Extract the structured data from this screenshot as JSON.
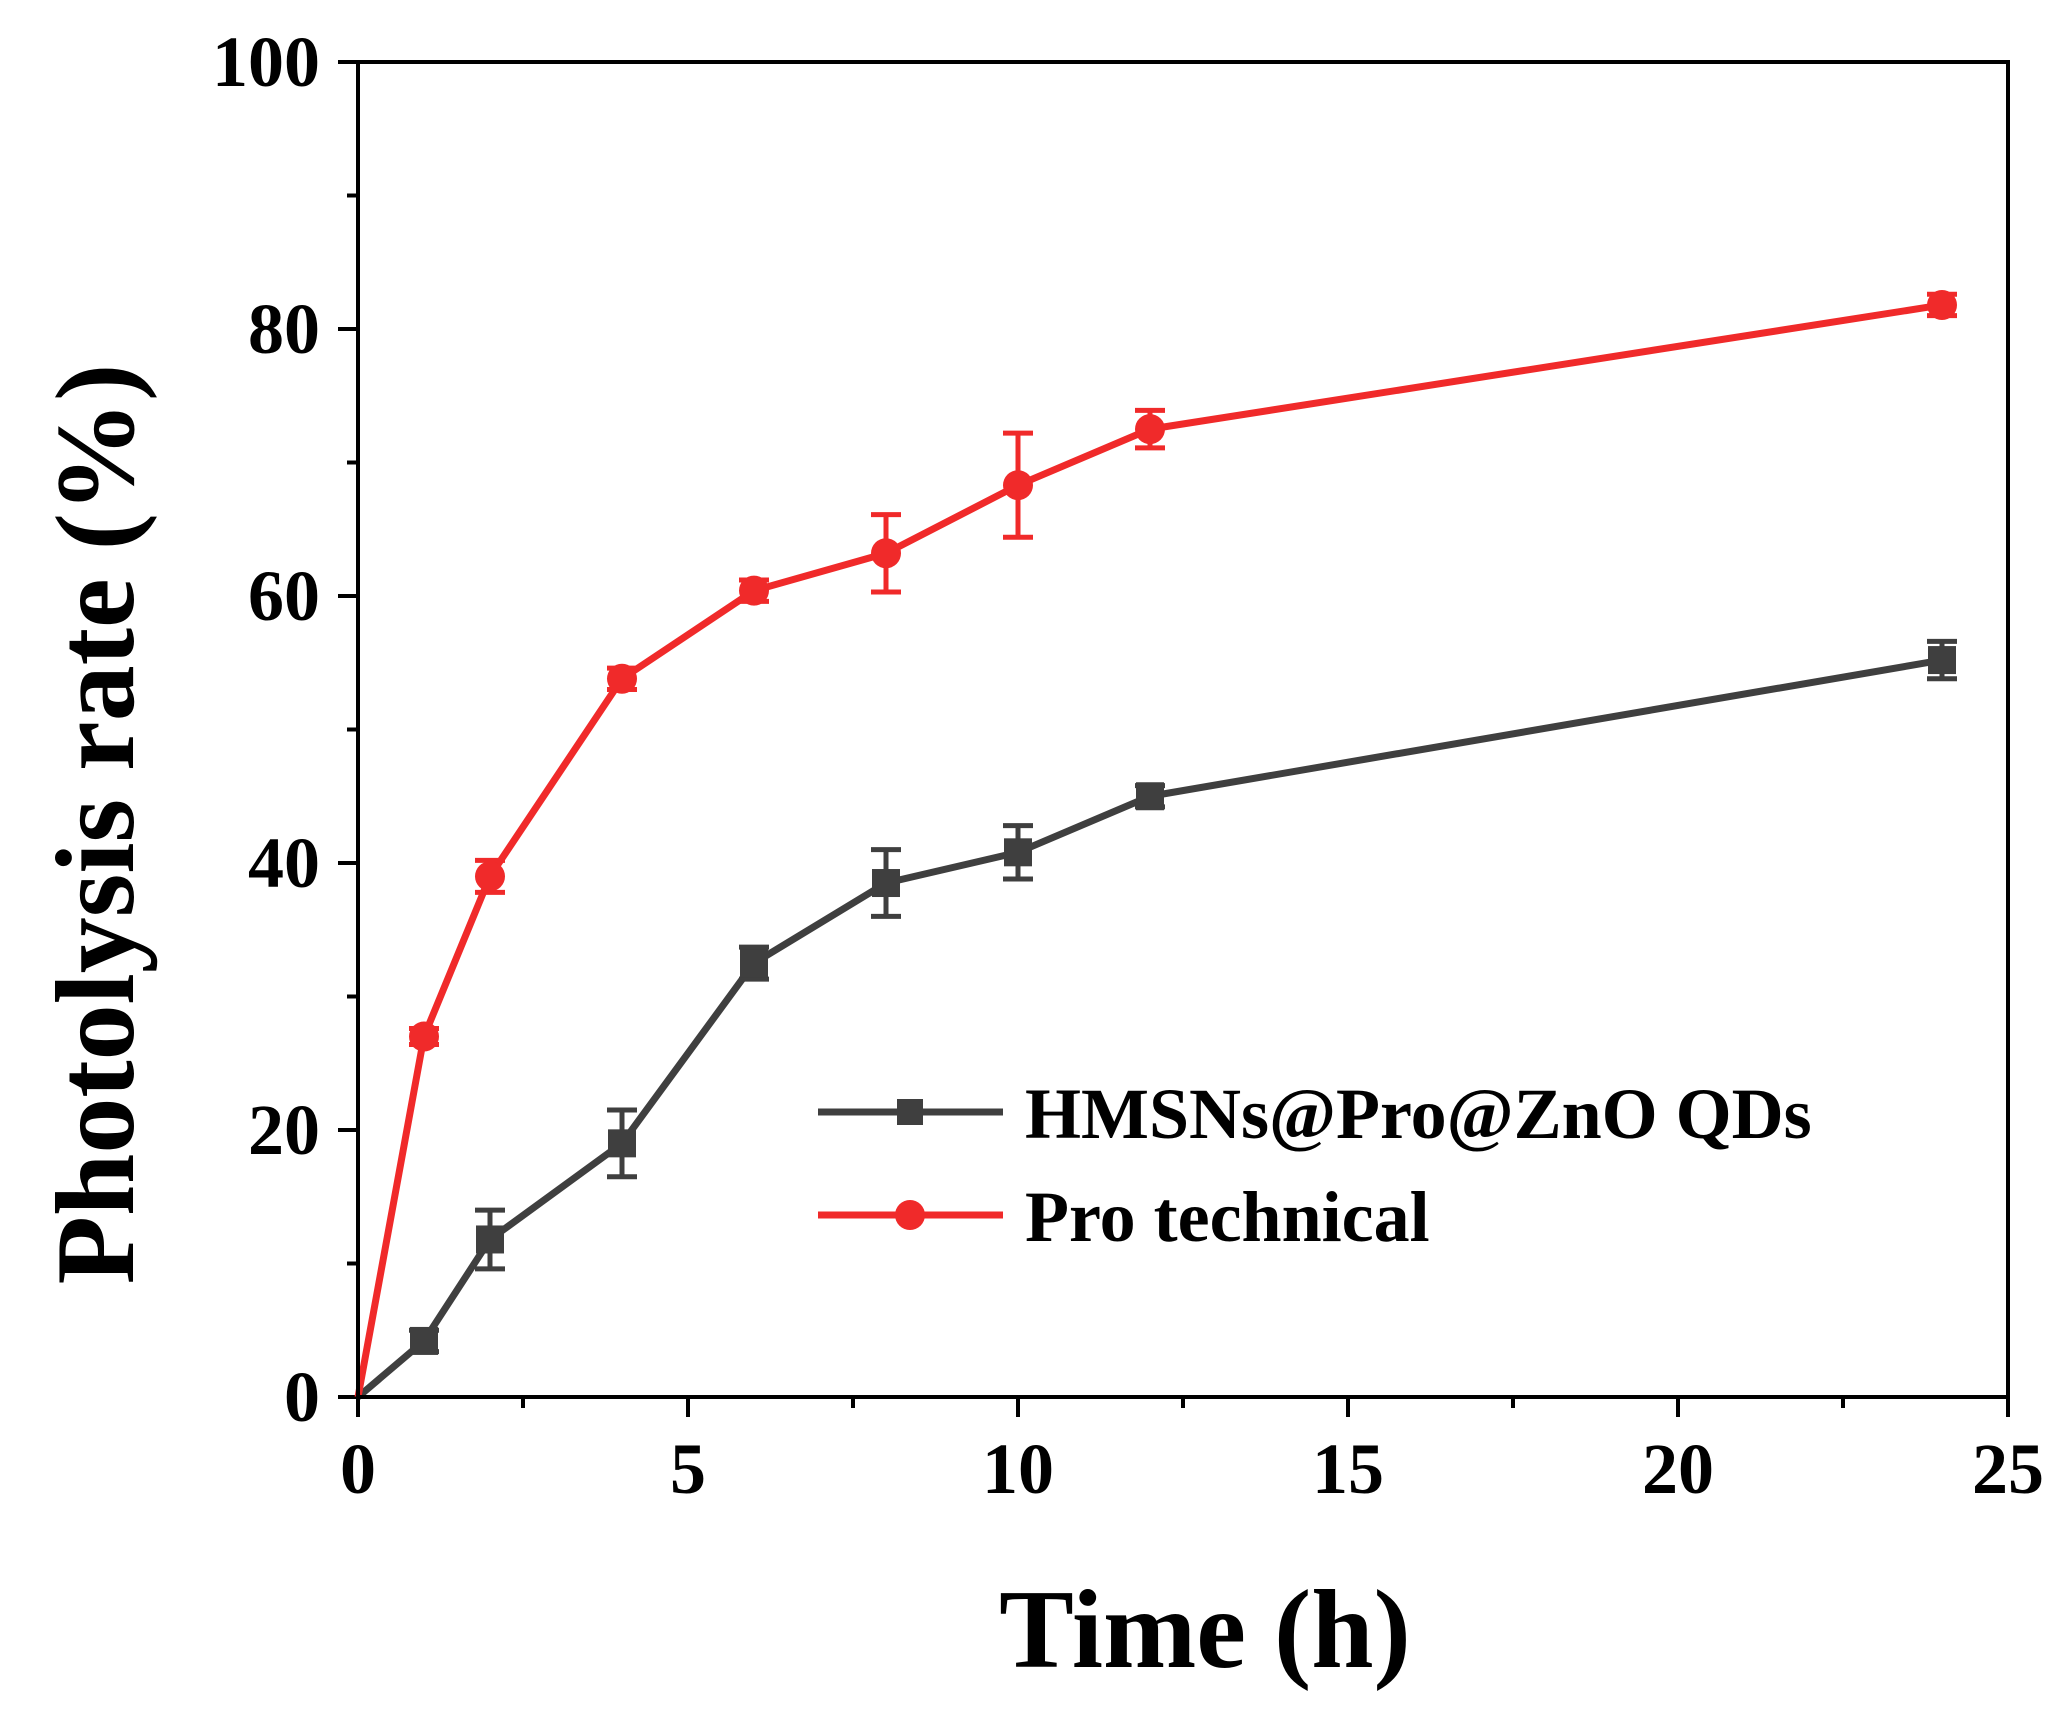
{
  "chart_data": {
    "type": "line",
    "xlabel": "Time (h)",
    "ylabel": "Photolysis rate (%)",
    "xlim": [
      0,
      25
    ],
    "ylim": [
      0,
      100
    ],
    "x_ticks": [
      0,
      5,
      10,
      15,
      20,
      25
    ],
    "y_ticks": [
      0,
      20,
      40,
      60,
      80,
      100
    ],
    "x_minor_step": 2.5,
    "y_minor_step": 10,
    "grid": false,
    "legend_position": "bottom-right",
    "x": [
      0,
      1,
      2,
      4,
      6,
      8,
      10,
      12,
      24
    ],
    "series": [
      {
        "name": "HMSNs@Pro@ZnO QDs",
        "marker": "square",
        "color": "#3f3f3f",
        "values": [
          0,
          4.2,
          11.8,
          19.0,
          32.5,
          38.5,
          40.8,
          45.0,
          55.2
        ],
        "errors": [
          0,
          0.8,
          2.2,
          2.5,
          1.2,
          2.5,
          2.0,
          0.8,
          1.4
        ]
      },
      {
        "name": "Pro technical",
        "marker": "circle",
        "color": "#f02a2a",
        "values": [
          0,
          27.0,
          39.0,
          53.8,
          60.4,
          63.2,
          68.3,
          72.5,
          81.8
        ],
        "errors": [
          0,
          0.6,
          1.2,
          0.8,
          0.8,
          2.9,
          3.9,
          1.4,
          0.8
        ]
      }
    ]
  }
}
